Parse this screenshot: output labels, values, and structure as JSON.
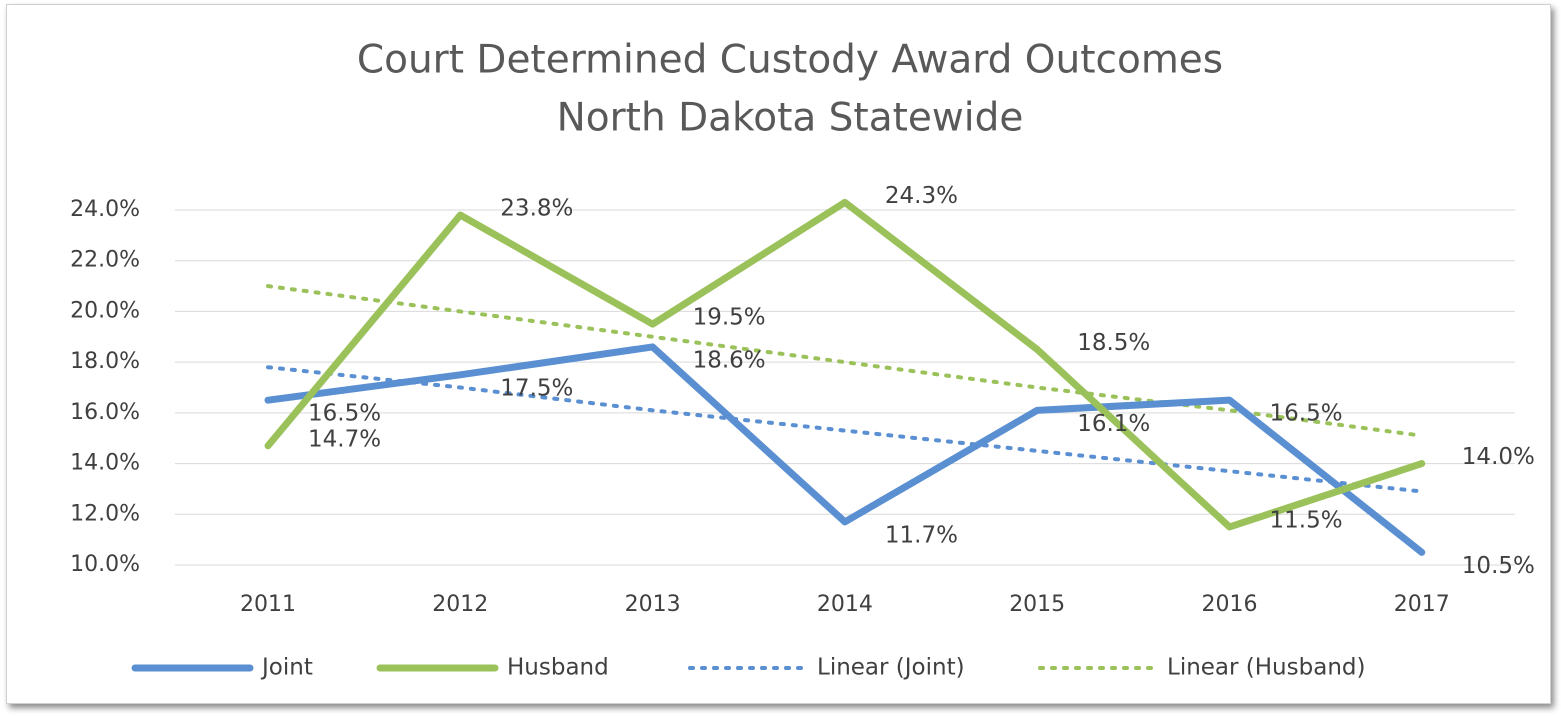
{
  "chart_data": {
    "type": "line",
    "title": "Court Determined  Custody Award Outcomes",
    "subtitle": "North Dakota Statewide",
    "categories": [
      "2011",
      "2012",
      "2013",
      "2014",
      "2015",
      "2016",
      "2017"
    ],
    "series": [
      {
        "name": "Joint",
        "color": "#5a8fd2",
        "style": "solid",
        "values": [
          16.5,
          17.5,
          18.6,
          11.7,
          16.1,
          16.5,
          10.5
        ],
        "value_labels": [
          "16.5%",
          "17.5%",
          "18.6%",
          "11.7%",
          "16.1%",
          "16.5%",
          "10.5%"
        ]
      },
      {
        "name": "Husband",
        "color": "#9bc25a",
        "style": "solid",
        "values": [
          14.7,
          23.8,
          19.5,
          24.3,
          18.5,
          11.5,
          14.0
        ],
        "value_labels": [
          "14.7%",
          "23.8%",
          "19.5%",
          "24.3%",
          "18.5%",
          "11.5%",
          "14.0%"
        ]
      },
      {
        "name": "Linear (Joint)",
        "color": "#5a8fd2",
        "style": "dotted",
        "values": [
          17.8,
          17.0,
          16.1,
          15.3,
          14.5,
          13.7,
          12.9
        ]
      },
      {
        "name": "Linear (Husband)",
        "color": "#9bc25a",
        "style": "dotted",
        "values": [
          21.0,
          20.0,
          19.0,
          18.0,
          17.0,
          16.1,
          15.1
        ]
      }
    ],
    "ylim": [
      10,
      24
    ],
    "yticks": [
      {
        "value": 10,
        "label": "10.0%"
      },
      {
        "value": 12,
        "label": "12.0%"
      },
      {
        "value": 14,
        "label": "14.0%"
      },
      {
        "value": 16,
        "label": "16.0%"
      },
      {
        "value": 18,
        "label": "18.0%"
      },
      {
        "value": 20,
        "label": "20.0%"
      },
      {
        "value": 22,
        "label": "22.0%"
      },
      {
        "value": 24,
        "label": "24.0%"
      }
    ],
    "grid": true,
    "legend": "bottom"
  }
}
